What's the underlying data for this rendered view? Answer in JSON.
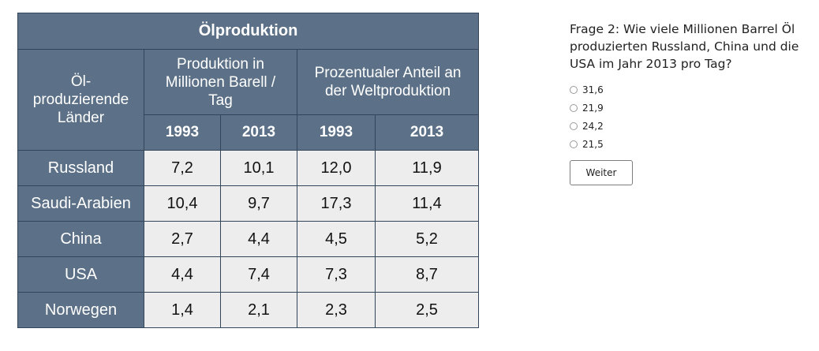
{
  "table": {
    "title": "Ölproduktion",
    "headers": {
      "countries": "Öl-\nproduzierende\nLänder",
      "production": "Produktion in\nMillionen Barell /\nTag",
      "share": "Prozentualer Anteil an\nder Weltproduktion"
    },
    "years": [
      "1993",
      "2013",
      "1993",
      "2013"
    ],
    "rows": [
      {
        "country": "Russland",
        "values": [
          "7,2",
          "10,1",
          "12,0",
          "11,9"
        ]
      },
      {
        "country": "Saudi-Arabien",
        "values": [
          "10,4",
          "9,7",
          "17,3",
          "11,4"
        ]
      },
      {
        "country": "China",
        "values": [
          "2,7",
          "4,4",
          "4,5",
          "5,2"
        ]
      },
      {
        "country": "USA",
        "values": [
          "4,4",
          "7,4",
          "7,3",
          "8,7"
        ]
      },
      {
        "country": "Norwegen",
        "values": [
          "1,4",
          "2,1",
          "2,3",
          "2,5"
        ]
      }
    ]
  },
  "quiz": {
    "question": "Frage 2: Wie viele Millionen Barrel Öl produzierten Russland, China und die USA im Jahr 2013 pro Tag?",
    "options": [
      "31,6",
      "21,9",
      "24,2",
      "21,5"
    ],
    "next_label": "Weiter"
  },
  "colors": {
    "header_bg": "#5c7187",
    "cell_bg": "#ededed",
    "border": "#33455a"
  }
}
